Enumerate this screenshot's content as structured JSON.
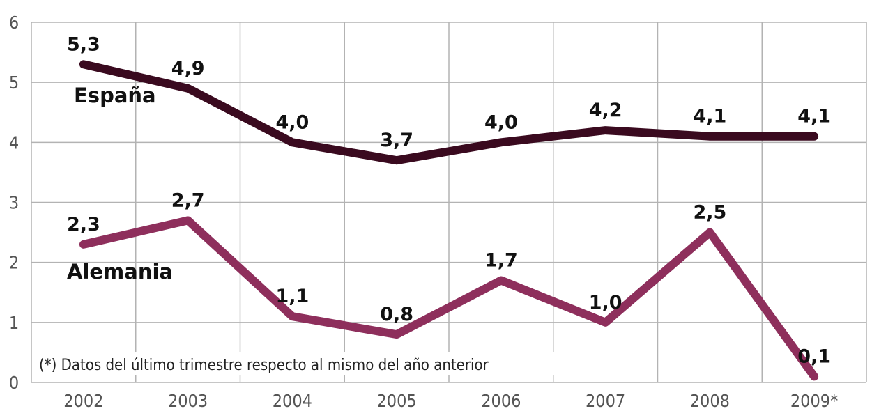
{
  "chart_data": {
    "type": "line",
    "categories": [
      "2002",
      "2003",
      "2004",
      "2005",
      "2006",
      "2007",
      "2008",
      "2009*"
    ],
    "series": [
      {
        "name": "España",
        "values": [
          5.3,
          4.9,
          4.0,
          3.7,
          4.0,
          4.2,
          4.1,
          4.1
        ],
        "labels": [
          "5,3",
          "4,9",
          "4,0",
          "3,7",
          "4,0",
          "4,2",
          "4,1",
          "4,1"
        ],
        "color": "#3a0a1f"
      },
      {
        "name": "Alemania",
        "values": [
          2.3,
          2.7,
          1.1,
          0.8,
          1.7,
          1.0,
          2.5,
          0.1
        ],
        "labels": [
          "2,3",
          "2,7",
          "1,1",
          "0,8",
          "1,7",
          "1,0",
          "2,5",
          "0,1"
        ],
        "color": "#8e2f5c"
      }
    ],
    "ylim": [
      0,
      6
    ],
    "yticks": [
      "0",
      "1",
      "2",
      "3",
      "4",
      "5",
      "6"
    ],
    "grid": true,
    "note": "(*) Datos del último trimestre respecto al mismo del año anterior"
  }
}
